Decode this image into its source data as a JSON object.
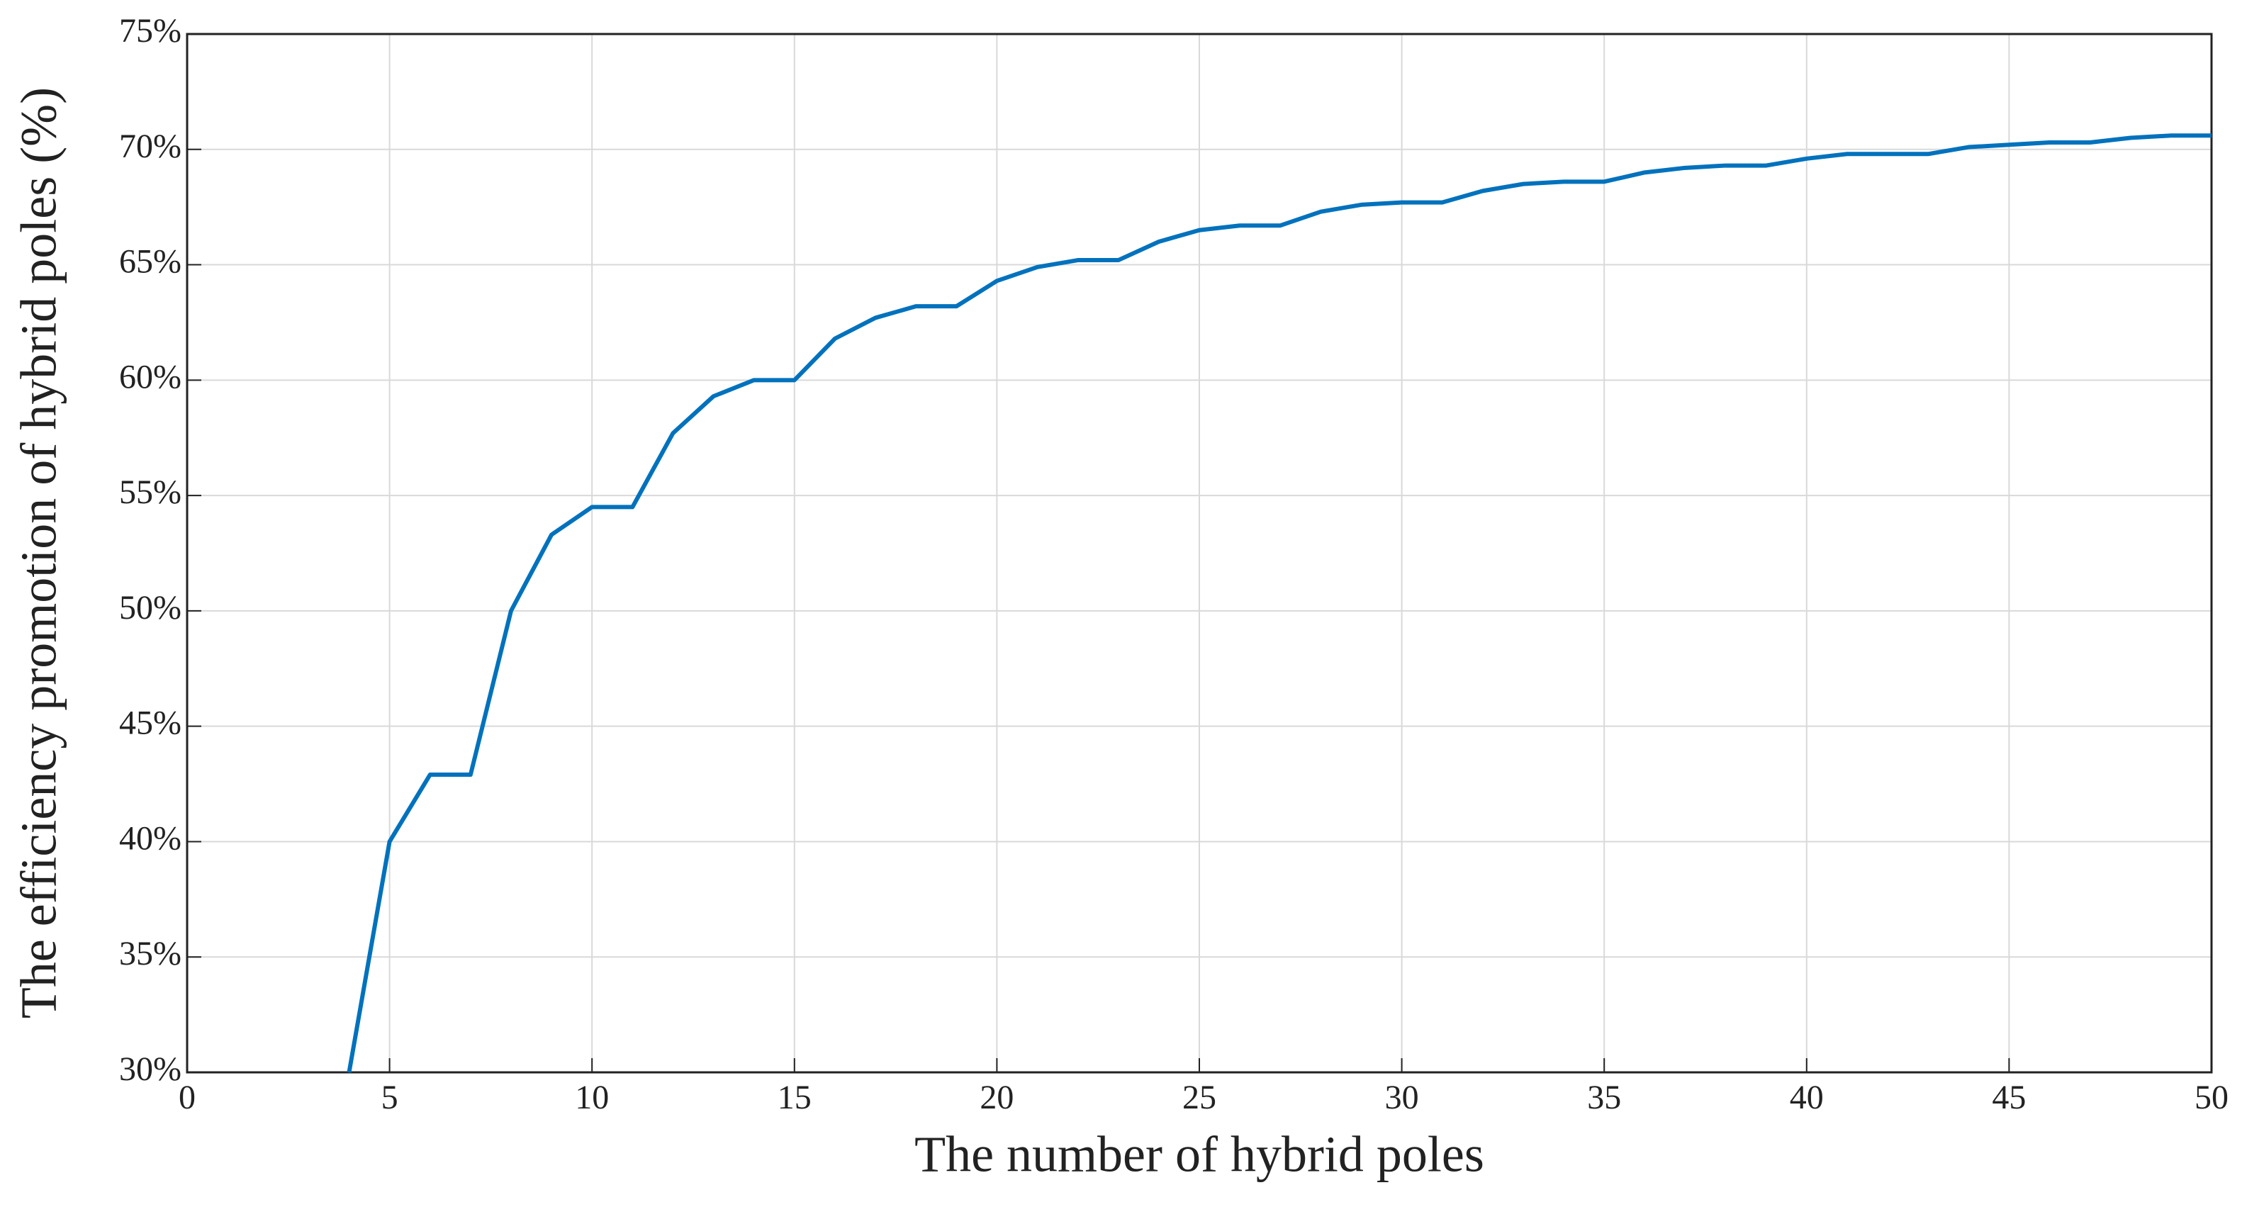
{
  "chart_data": {
    "type": "line",
    "xlabel": "The number of hybrid poles",
    "ylabel": "The efficiency promotion of hybrid poles (%)",
    "x": [
      4,
      5,
      6,
      7,
      8,
      9,
      10,
      11,
      12,
      13,
      14,
      15,
      16,
      17,
      18,
      19,
      20,
      21,
      22,
      23,
      24,
      25,
      26,
      27,
      28,
      29,
      30,
      31,
      32,
      33,
      34,
      35,
      36,
      37,
      38,
      39,
      40,
      41,
      42,
      43,
      44,
      45,
      46,
      47,
      48,
      49,
      50
    ],
    "series": [
      {
        "color": "#0072bd",
        "values": [
          30,
          40,
          42.9,
          42.9,
          50,
          53.3,
          54.5,
          54.5,
          57.7,
          59.3,
          60,
          60,
          61.8,
          62.7,
          63.2,
          63.2,
          64.3,
          64.9,
          65.2,
          65.2,
          66,
          66.5,
          66.7,
          66.7,
          67.3,
          67.6,
          67.7,
          67.7,
          68.2,
          68.5,
          68.6,
          68.6,
          69,
          69.2,
          69.3,
          69.3,
          69.6,
          69.8,
          69.8,
          69.8,
          70.1,
          70.2,
          70.3,
          70.3,
          70.5,
          70.6,
          70.6
        ]
      }
    ],
    "xlim": [
      0,
      50
    ],
    "xticks": [
      0,
      5,
      10,
      15,
      20,
      25,
      30,
      35,
      40,
      45,
      50
    ],
    "ylim": [
      30,
      75
    ],
    "yticks": [
      {
        "value": 30,
        "label": "30%"
      },
      {
        "value": 35,
        "label": "35%"
      },
      {
        "value": 40,
        "label": "40%"
      },
      {
        "value": 45,
        "label": "45%"
      },
      {
        "value": 50,
        "label": "50%"
      },
      {
        "value": 55,
        "label": "55%"
      },
      {
        "value": 60,
        "label": "60%"
      },
      {
        "value": 65,
        "label": "65%"
      },
      {
        "value": 70,
        "label": "70%"
      },
      {
        "value": 75,
        "label": "75%"
      }
    ],
    "grid": true
  }
}
